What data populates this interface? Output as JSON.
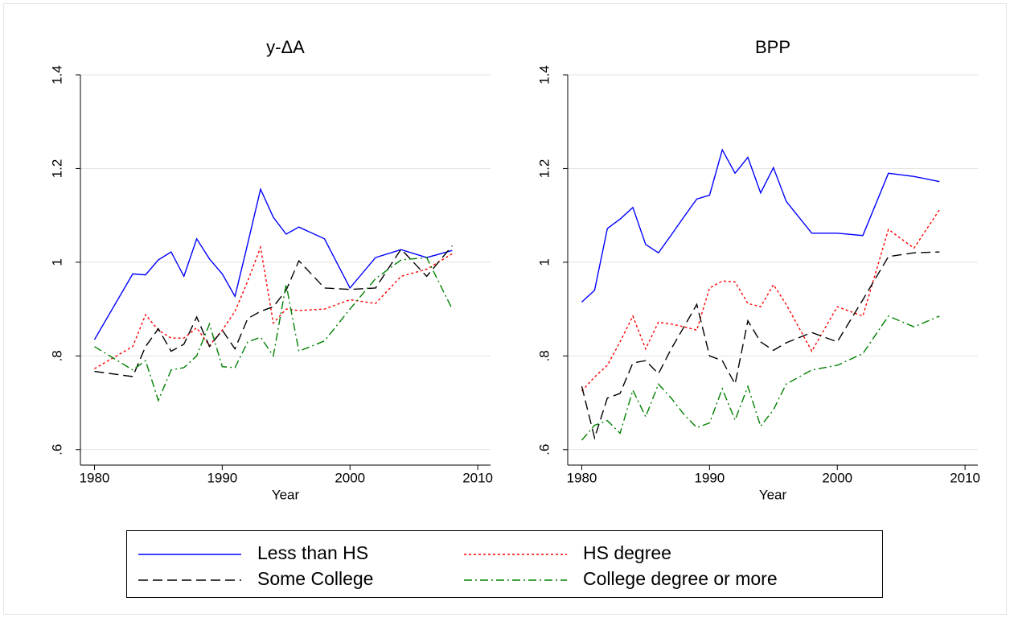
{
  "chart_data": [
    {
      "type": "line",
      "title": "y-ΔA",
      "x_label": "Year",
      "x": [
        1980,
        1983,
        1984,
        1985,
        1986,
        1987,
        1988,
        1989,
        1990,
        1991,
        1992,
        1993,
        1994,
        1995,
        1996,
        1998,
        2000,
        2002,
        2004,
        2006,
        2008
      ],
      "series": [
        {
          "name": "Less than HS",
          "color": "#0000ff",
          "dash": "solid",
          "values": [
            0.835,
            0.975,
            0.973,
            1.005,
            1.022,
            0.97,
            1.05,
            1.007,
            0.975,
            0.927,
            1.04,
            1.156,
            1.096,
            1.06,
            1.075,
            1.05,
            0.945,
            1.01,
            1.027,
            1.01,
            1.025
          ]
        },
        {
          "name": "HS degree",
          "color": "#ff0000",
          "dash": "dotted",
          "values": [
            0.773,
            0.82,
            0.888,
            0.855,
            0.838,
            0.838,
            0.86,
            0.822,
            0.855,
            0.895,
            0.96,
            1.032,
            0.87,
            0.9,
            0.897,
            0.9,
            0.92,
            0.912,
            0.97,
            0.985,
            1.018
          ]
        },
        {
          "name": "Some College",
          "color": "#000000",
          "dash": "dashed",
          "values": [
            0.767,
            0.756,
            0.82,
            0.858,
            0.81,
            0.825,
            0.883,
            0.82,
            0.855,
            0.815,
            0.88,
            0.895,
            0.905,
            0.94,
            1.003,
            0.945,
            0.942,
            0.945,
            1.028,
            0.97,
            1.035
          ]
        },
        {
          "name": "College degree or more",
          "color": "#008000",
          "dash": "dashdot",
          "values": [
            0.82,
            0.77,
            0.79,
            0.705,
            0.77,
            0.775,
            0.8,
            0.868,
            0.777,
            0.775,
            0.83,
            0.84,
            0.8,
            0.953,
            0.81,
            0.832,
            0.9,
            0.965,
            1.005,
            1.01,
            0.9
          ]
        }
      ],
      "xlim": [
        1978.9,
        2011
      ],
      "xticks": [
        1980,
        1990,
        2000,
        2010
      ],
      "ylim": [
        0.567,
        1.4
      ],
      "yticks": [
        {
          "value": 0.6,
          "label": ".6"
        },
        {
          "value": 0.8,
          "label": ".8"
        },
        1,
        1.2,
        1.4
      ],
      "grid": true
    },
    {
      "type": "line",
      "title": "BPP",
      "x_label": "Year",
      "x": [
        1980,
        1981,
        1982,
        1983,
        1984,
        1985,
        1986,
        1987,
        1988,
        1989,
        1990,
        1991,
        1992,
        1993,
        1994,
        1995,
        1996,
        1998,
        2000,
        2002,
        2004,
        2006,
        2008
      ],
      "series": [
        {
          "name": "Less than HS",
          "color": "#0000ff",
          "dash": "solid",
          "values": [
            0.915,
            0.94,
            1.072,
            1.092,
            1.117,
            1.038,
            1.02,
            1.058,
            1.097,
            1.135,
            1.143,
            1.24,
            1.19,
            1.224,
            1.148,
            1.202,
            1.13,
            1.062,
            1.062,
            1.057,
            1.19,
            1.183,
            1.172
          ]
        },
        {
          "name": "HS degree",
          "color": "#ff0000",
          "dash": "dotted",
          "values": [
            0.725,
            0.755,
            0.78,
            0.83,
            0.885,
            0.815,
            0.872,
            0.868,
            0.862,
            0.855,
            0.945,
            0.96,
            0.958,
            0.912,
            0.905,
            0.952,
            0.91,
            0.81,
            0.905,
            0.885,
            1.07,
            1.03,
            1.112
          ]
        },
        {
          "name": "Some College",
          "color": "#000000",
          "dash": "dashed",
          "values": [
            0.735,
            0.625,
            0.71,
            0.72,
            0.785,
            0.79,
            0.762,
            0.815,
            0.862,
            0.91,
            0.8,
            0.79,
            0.74,
            0.875,
            0.83,
            0.812,
            0.828,
            0.85,
            0.83,
            0.92,
            1.012,
            1.02,
            1.022
          ]
        },
        {
          "name": "College degree or more",
          "color": "#008000",
          "dash": "dashdot",
          "values": [
            0.62,
            0.652,
            0.662,
            0.635,
            0.727,
            0.67,
            0.74,
            0.71,
            0.675,
            0.647,
            0.657,
            0.73,
            0.663,
            0.735,
            0.65,
            0.685,
            0.74,
            0.77,
            0.78,
            0.805,
            0.885,
            0.862,
            0.885
          ]
        }
      ],
      "xlim": [
        1978.9,
        2011
      ],
      "xticks": [
        1980,
        1990,
        2000,
        2010
      ],
      "ylim": [
        0.567,
        1.4
      ],
      "yticks": [
        {
          "value": 0.6,
          "label": ".6"
        },
        {
          "value": 0.8,
          "label": ".8"
        },
        1,
        1.2,
        1.4
      ],
      "grid": true
    }
  ]
}
